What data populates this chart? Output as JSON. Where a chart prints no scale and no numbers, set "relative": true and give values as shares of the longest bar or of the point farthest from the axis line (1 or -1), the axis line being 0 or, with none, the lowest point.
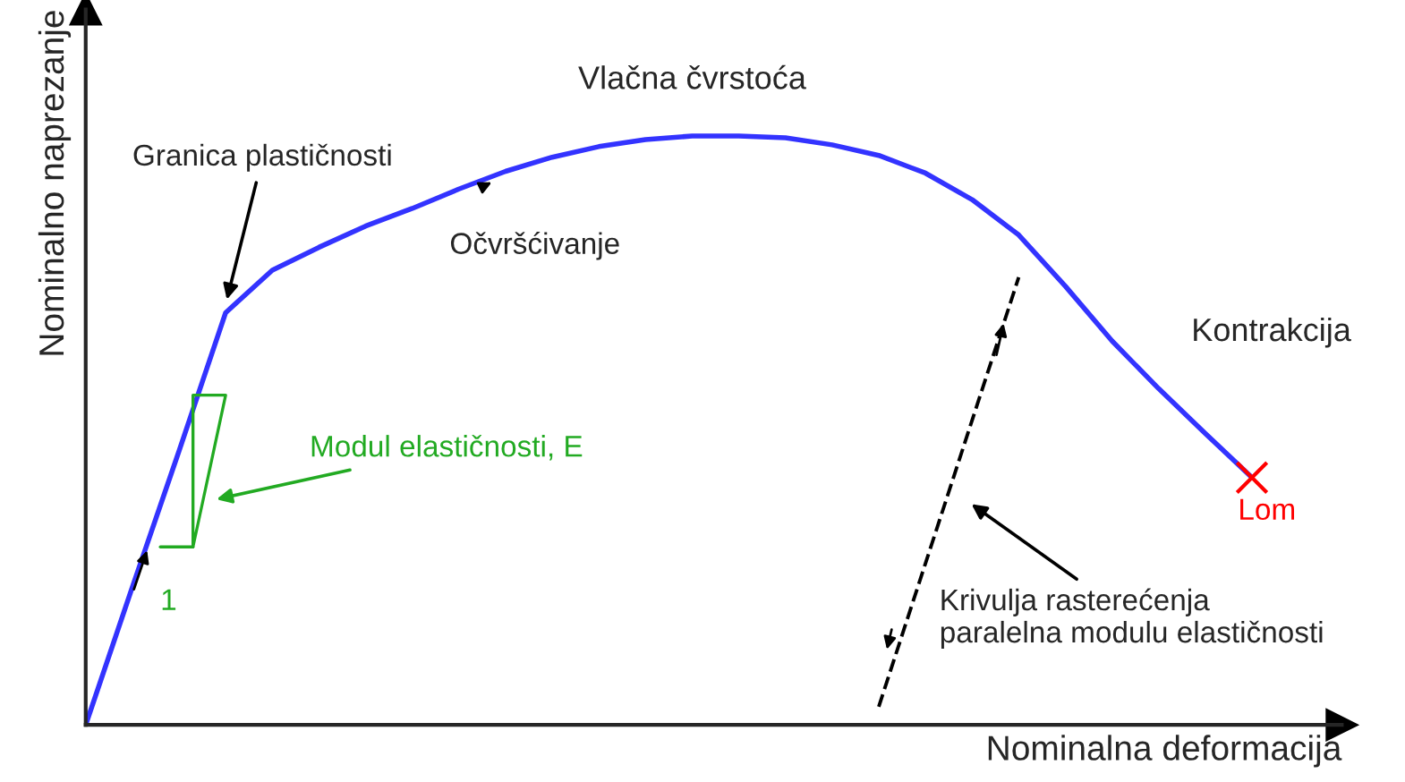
{
  "chart_data": {
    "type": "line",
    "relative": true,
    "xlabel": "Nominalna deformacija",
    "ylabel": "Nominalno naprezanje",
    "categories": [
      null,
      null,
      null,
      null,
      null,
      null,
      null,
      null,
      null,
      null,
      null,
      null,
      null,
      null,
      null,
      null,
      null,
      null,
      null,
      null,
      null,
      null,
      null,
      null,
      null,
      null
    ],
    "series": [
      {
        "color": "#3333ff",
        "line_style": "solid",
        "values": [
          0,
          0.234,
          0.465,
          0.7,
          0.772,
          0.811,
          0.847,
          0.877,
          0.91,
          0.94,
          0.964,
          0.982,
          0.994,
          1.0,
          1.0,
          0.997,
          0.985,
          0.967,
          0.937,
          0.892,
          0.832,
          0.745,
          0.652,
          0.571,
          0.495,
          0.42
        ]
      },
      {
        "color": "#000000",
        "line_style": "dashed",
        "values": [
          null,
          null,
          null,
          null,
          null,
          null,
          null,
          null,
          null,
          null,
          null,
          null,
          null,
          null,
          null,
          null,
          null,
          0.031,
          0.274,
          0.517,
          0.76,
          null,
          null,
          null,
          null,
          null
        ]
      }
    ],
    "marker": "none",
    "annotations": [
      "Vlačna čvrstoća",
      "Granica plastičnosti",
      "Očvršćivanje",
      "Kontrakcija",
      "Modul elastičnosti, E",
      "1",
      "Lom",
      "Krivulja rasterećenja\nparalelna modulu elastičnosti"
    ]
  }
}
